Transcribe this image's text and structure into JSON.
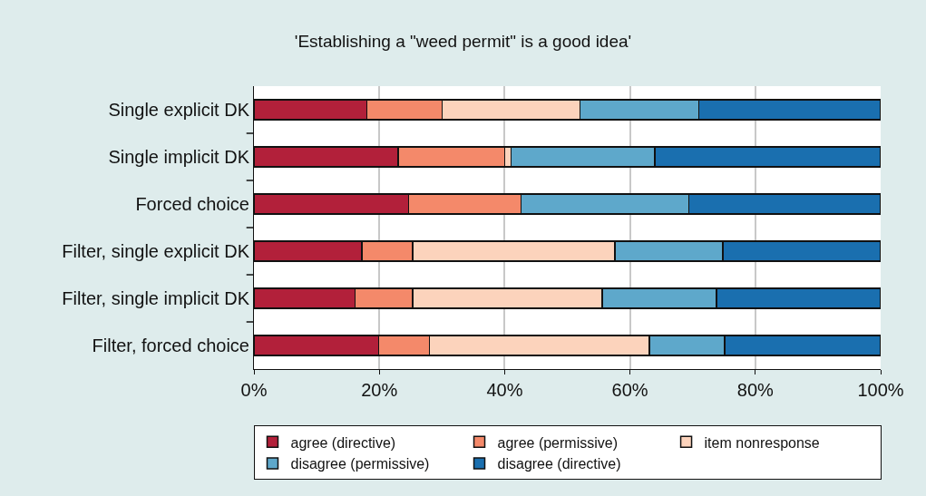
{
  "chart_data": {
    "type": "bar",
    "orientation": "horizontal",
    "stacked": true,
    "title": "'Establishing a \"weed permit\" is a good idea'",
    "categories": [
      "Single explicit DK",
      "Single implicit DK",
      "Forced choice",
      "Filter, single explicit DK",
      "Filter, single implicit DK",
      "Filter, forced choice"
    ],
    "series": [
      {
        "name": "agree (directive)",
        "color": "#b2203a",
        "values": [
          18,
          23,
          24.7,
          17.2,
          16.1,
          19.9
        ]
      },
      {
        "name": "agree (permissive)",
        "color": "#f4896a",
        "values": [
          12,
          17,
          17.9,
          8.1,
          9.2,
          8.1
        ]
      },
      {
        "name": "item nonresponse",
        "color": "#fcd3bc",
        "values": [
          22,
          1,
          0,
          32.3,
          30.3,
          35.1
        ]
      },
      {
        "name": "disagree (permissive)",
        "color": "#5ea8cb",
        "values": [
          19,
          23,
          26.8,
          17.2,
          18.2,
          12
        ]
      },
      {
        "name": "disagree (directive)",
        "color": "#1a6faf",
        "values": [
          29,
          36,
          30.6,
          25.2,
          26.2,
          24.9
        ]
      }
    ],
    "xlim": [
      0,
      100
    ],
    "xticks": [
      {
        "value": 0,
        "label": "0%"
      },
      {
        "value": 20,
        "label": "20%"
      },
      {
        "value": 40,
        "label": "40%"
      },
      {
        "value": 60,
        "label": "60%"
      },
      {
        "value": 80,
        "label": "80%"
      },
      {
        "value": 100,
        "label": "100%"
      }
    ],
    "grid": "x",
    "legend": "bottom"
  }
}
